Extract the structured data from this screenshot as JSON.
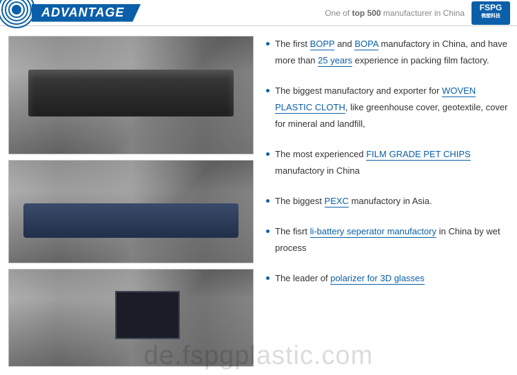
{
  "header": {
    "title": "ADVANTAGE",
    "subtitle_pre": "One of ",
    "subtitle_bold": "top 500",
    "subtitle_post": " manufacturer in China",
    "logo_text": "FSPG",
    "logo_cn": "佛塑科技",
    "title_bg": "#0a5fa8",
    "title_color": "#ffffff"
  },
  "bullets": [
    {
      "segments": [
        {
          "t": "The first "
        },
        {
          "t": "BOPP",
          "u": true
        },
        {
          "t": " and "
        },
        {
          "t": "BOPA",
          "u": true
        },
        {
          "t": " manufactory in China, and have more than "
        },
        {
          "t": "25 years",
          "u": true
        },
        {
          "t": " experience in packing film factory."
        }
      ]
    },
    {
      "segments": [
        {
          "t": "The biggest manufactory and exporter for "
        },
        {
          "t": "WOVEN PLASTIC CLOTH",
          "u": true
        },
        {
          "t": ", like greenhouse cover, geotextile, cover for mineral and landfill,"
        }
      ]
    },
    {
      "segments": [
        {
          "t": "The most experienced "
        },
        {
          "t": "FILM GRADE PET CHIPS",
          "u": true
        },
        {
          "t": " manufactory in China"
        }
      ]
    },
    {
      "segments": [
        {
          "t": "The biggest "
        },
        {
          "t": "PEXC",
          "u": true
        },
        {
          "t": " manufactory in Asia."
        }
      ]
    },
    {
      "segments": [
        {
          "t": "The fisrt "
        },
        {
          "t": "li-battery seperator manufactory",
          "u": true
        },
        {
          "t": " in China by wet process"
        }
      ]
    },
    {
      "segments": [
        {
          "t": "The leader of "
        },
        {
          "t": "polarizer for 3D glasses",
          "u": true
        }
      ]
    }
  ],
  "colors": {
    "accent": "#0a5fa8",
    "text": "#333333",
    "border": "#c0c0c0"
  },
  "watermark": "de.fspgplastic.com"
}
